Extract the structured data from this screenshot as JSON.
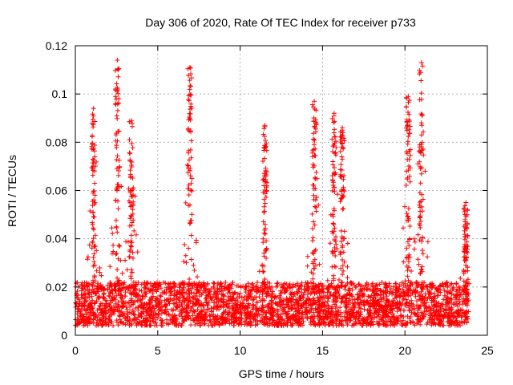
{
  "chart_data": {
    "type": "scatter",
    "title": "Day 306 of 2020, Rate Of TEC Index for receiver p733",
    "xlabel": "GPS time / hours",
    "ylabel": "ROTI / TECUs",
    "xlim": [
      0,
      25
    ],
    "ylim": [
      0,
      0.12
    ],
    "xticks": [
      0,
      5,
      10,
      15,
      20,
      25
    ],
    "yticks": [
      0,
      0.02,
      0.04,
      0.06,
      0.08,
      0.1,
      0.12
    ],
    "xtick_labels": [
      "0",
      "5",
      "10",
      "15",
      "20",
      "25"
    ],
    "ytick_labels": [
      "0",
      "0.02",
      "0.04",
      "0.06",
      "0.08",
      "0.1",
      "0.12"
    ],
    "grid": true,
    "marker": "+",
    "color": "#ff0000",
    "data_range_hours": [
      0,
      23.9
    ],
    "base_level": 0.012,
    "peaks": [
      {
        "x": 1.1,
        "y": 0.094
      },
      {
        "x": 2.55,
        "y": 0.114
      },
      {
        "x": 3.4,
        "y": 0.089
      },
      {
        "x": 6.95,
        "y": 0.111
      },
      {
        "x": 11.5,
        "y": 0.087
      },
      {
        "x": 14.5,
        "y": 0.097
      },
      {
        "x": 15.7,
        "y": 0.092
      },
      {
        "x": 16.2,
        "y": 0.086
      },
      {
        "x": 20.2,
        "y": 0.099
      },
      {
        "x": 21.0,
        "y": 0.113
      },
      {
        "x": 23.7,
        "y": 0.055
      }
    ]
  }
}
